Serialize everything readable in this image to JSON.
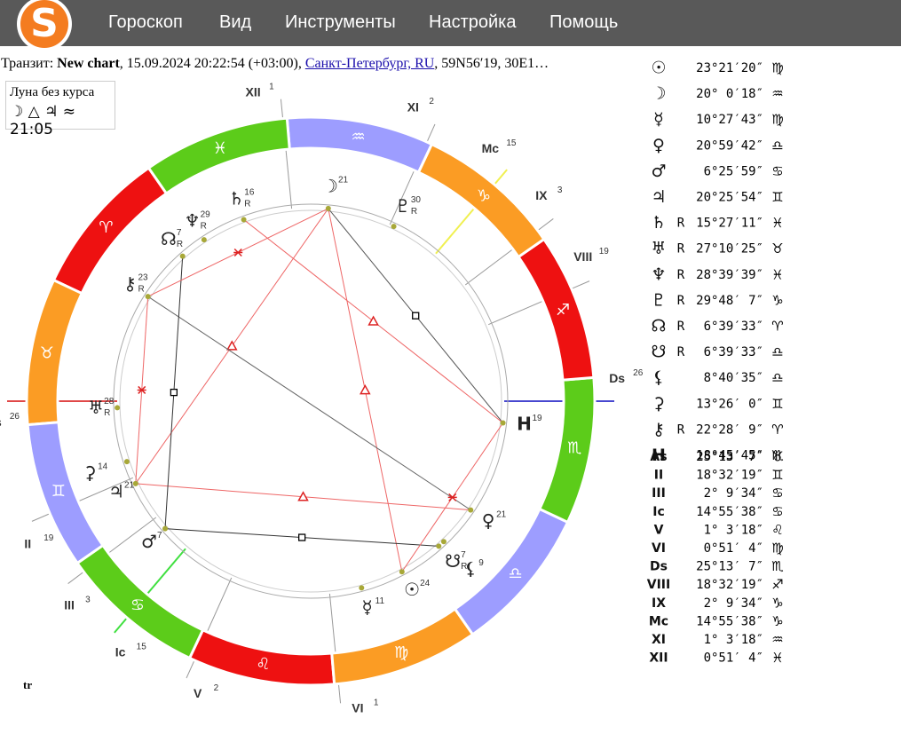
{
  "logo": "S",
  "menu": [
    "Гороскоп",
    "Вид",
    "Инструменты",
    "Настройка",
    "Помощь"
  ],
  "header": {
    "label": "Транзит:",
    "chart_name": "New chart",
    "datetime": ", 15.09.2024 20:22:54 (+03:00), ",
    "place": "Санкт-Петербург, RU",
    "coords": ", 59N56′19, 30E1…"
  },
  "void_moon": {
    "title": "Луна без курса",
    "text": "☽ △ ♃ ≈ 21:05"
  },
  "zodiac": [
    "♈︎",
    "♉︎",
    "♊︎",
    "♋︎",
    "♌︎",
    "♍︎",
    "♎︎",
    "♏︎",
    "♐︎",
    "♑︎",
    "♒︎",
    "♓︎"
  ],
  "bodies": [
    {
      "glyph": "☉",
      "position": "23°21′20″",
      "sign": "♍︎",
      "wheel_degree": "24"
    },
    {
      "glyph": "☽",
      "position": "20° 0′18″",
      "sign": "♒︎",
      "wheel_degree": "21"
    },
    {
      "glyph": "☿",
      "position": "10°27′43″",
      "sign": "♍︎",
      "wheel_degree": "11"
    },
    {
      "glyph": "♀",
      "position": "20°59′42″",
      "sign": "♎︎",
      "wheel_degree": "21"
    },
    {
      "glyph": "♂",
      "position": "6°25′59″",
      "sign": "♋︎",
      "wheel_degree": "7"
    },
    {
      "glyph": "♃",
      "position": "20°25′54″",
      "sign": "♊︎",
      "wheel_degree": "21"
    },
    {
      "glyph": "♄",
      "retro": "R",
      "position": "15°27′11″",
      "sign": "♓︎",
      "wheel_degree": "16"
    },
    {
      "glyph": "♅",
      "retro": "R",
      "position": "27°10′25″",
      "sign": "♉︎",
      "wheel_degree": "28"
    },
    {
      "glyph": "♆",
      "retro": "R",
      "position": "28°39′39″",
      "sign": "♓︎",
      "wheel_degree": "29"
    },
    {
      "glyph": "♇",
      "retro": "R",
      "position": "29°48′ 7″",
      "sign": "♑︎",
      "wheel_degree": "30"
    },
    {
      "glyph": "☊",
      "retro": "R",
      "position": "6°39′33″",
      "sign": "♈︎",
      "wheel_degree": "7"
    },
    {
      "glyph": "☋",
      "retro": "R",
      "position": "6°39′33″",
      "sign": "♎︎",
      "wheel_degree": "7"
    },
    {
      "glyph": "⚸",
      "position": "8°40′35″",
      "sign": "♎︎",
      "wheel_degree": "9"
    },
    {
      "glyph": "⚳",
      "position": "13°26′ 0″",
      "sign": "♊︎",
      "wheel_degree": "14"
    },
    {
      "glyph": "⚷",
      "retro": "R",
      "position": "22°28′ 9″",
      "sign": "♈︎",
      "wheel_degree": "23"
    },
    {
      "glyph": "H",
      "position": "18°45′45″",
      "sign": "♏︎",
      "wheel_degree": "19"
    }
  ],
  "houses": [
    {
      "label": "As",
      "position": "25°13′ 7″",
      "sign": "♉︎",
      "wheel_degree": "26"
    },
    {
      "label": "II",
      "position": "18°32′19″",
      "sign": "♊︎",
      "wheel_degree": "19"
    },
    {
      "label": "III",
      "position": "2° 9′34″",
      "sign": "♋︎",
      "wheel_degree": "3"
    },
    {
      "label": "Ic",
      "position": "14°55′38″",
      "sign": "♋︎",
      "wheel_degree": "15"
    },
    {
      "label": "V",
      "position": "1° 3′18″",
      "sign": "♌︎",
      "wheel_degree": "2"
    },
    {
      "label": "VI",
      "position": "0°51′ 4″",
      "sign": "♍︎",
      "wheel_degree": "1"
    },
    {
      "label": "Ds",
      "position": "25°13′ 7″",
      "sign": "♏︎",
      "wheel_degree": "26"
    },
    {
      "label": "VIII",
      "position": "18°32′19″",
      "sign": "♐︎",
      "wheel_degree": "19"
    },
    {
      "label": "IX",
      "position": "2° 9′34″",
      "sign": "♑︎",
      "wheel_degree": "3"
    },
    {
      "label": "Mc",
      "position": "14°55′38″",
      "sign": "♑︎",
      "wheel_degree": "15"
    },
    {
      "label": "XI",
      "position": "1° 3′18″",
      "sign": "♒︎",
      "wheel_degree": "2"
    },
    {
      "label": "XII",
      "position": "0°51′ 4″",
      "sign": "♓︎",
      "wheel_degree": "1"
    }
  ],
  "wheel_label": "tr"
}
